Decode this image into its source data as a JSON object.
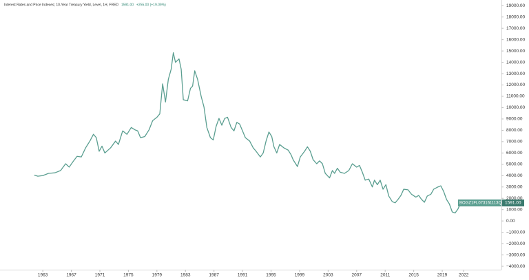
{
  "chart_data": {
    "type": "line",
    "title": "Interest Rates and Price Indexes; 10-Year Treasury Yield, Level, 1H, FRED",
    "change": "+255.00 (+19.09%)",
    "last_value": {
      "value": 1591,
      "label": "1591.00"
    },
    "xlim": [
      1957.0,
      2027.3
    ],
    "xticks": [
      1963,
      1967,
      1971,
      1975,
      1979,
      1983,
      1987,
      1991,
      1995,
      1999,
      2003,
      2007,
      2011,
      2015,
      2019,
      2022
    ],
    "ylim": [
      -4300,
      19500
    ],
    "yticks": [
      {
        "value": 19000,
        "label": "19000.00"
      },
      {
        "value": 18000,
        "label": "18000.00"
      },
      {
        "value": 17000,
        "label": "17000.00"
      },
      {
        "value": 16000,
        "label": "16000.00"
      },
      {
        "value": 15000,
        "label": "15000.00"
      },
      {
        "value": 14000,
        "label": "14000.00"
      },
      {
        "value": 13000,
        "label": "13000.00"
      },
      {
        "value": 12000,
        "label": "12000.00"
      },
      {
        "value": 11000,
        "label": "11000.00"
      },
      {
        "value": 10000,
        "label": "10000.00"
      },
      {
        "value": 9000,
        "label": "9000.00"
      },
      {
        "value": 8000,
        "label": "8000.00"
      },
      {
        "value": 7000,
        "label": "7000.00"
      },
      {
        "value": 6000,
        "label": "6000.00"
      },
      {
        "value": 5000,
        "label": "5000.00"
      },
      {
        "value": 4000,
        "label": "4000.00"
      },
      {
        "value": 3000,
        "label": "3000.00"
      },
      {
        "value": 2000,
        "label": "2000.00"
      },
      {
        "value": 1000,
        "label": "1000.00"
      },
      {
        "value": 0,
        "label": "0.00"
      },
      {
        "value": -1000,
        "label": "−1000.00"
      },
      {
        "value": -2000,
        "label": "−2000.00"
      },
      {
        "value": -3000,
        "label": "−3000.00"
      },
      {
        "value": -4000,
        "label": "−4000.00"
      }
    ],
    "series": [
      {
        "name": "BOGZ1FL073161113Q",
        "color": "#5a9e90",
        "x": [
          1961.8,
          1962.3,
          1963.0,
          1963.8,
          1964.7,
          1965.5,
          1966.2,
          1966.7,
          1967.2,
          1967.8,
          1968.4,
          1969.0,
          1969.6,
          1970.1,
          1970.5,
          1970.9,
          1971.3,
          1971.7,
          1972.5,
          1973.2,
          1973.6,
          1974.2,
          1974.8,
          1975.4,
          1975.9,
          1976.3,
          1976.7,
          1977.3,
          1977.9,
          1978.4,
          1979.0,
          1979.4,
          1979.8,
          1980.2,
          1980.6,
          1981.0,
          1981.3,
          1981.6,
          1982.1,
          1982.4,
          1982.7,
          1983.3,
          1983.7,
          1984.0,
          1984.3,
          1984.7,
          1985.2,
          1985.6,
          1986.0,
          1986.5,
          1986.9,
          1987.3,
          1987.7,
          1988.1,
          1988.5,
          1988.9,
          1989.4,
          1989.8,
          1990.2,
          1990.6,
          1991.0,
          1991.4,
          1992.0,
          1992.5,
          1992.9,
          1993.5,
          1993.9,
          1994.3,
          1994.7,
          1995.1,
          1995.4,
          1995.8,
          1996.2,
          1996.8,
          1997.4,
          1997.8,
          1998.1,
          1998.7,
          1999.1,
          1999.7,
          2000.1,
          2000.5,
          2000.9,
          2001.4,
          2001.8,
          2002.2,
          2002.6,
          2003.2,
          2003.6,
          2003.9,
          2004.3,
          2004.7,
          2005.3,
          2005.9,
          2006.4,
          2007.0,
          2007.4,
          2007.8,
          2008.2,
          2008.7,
          2009.2,
          2009.5,
          2009.9,
          2010.3,
          2010.7,
          2011.1,
          2011.5,
          2012.0,
          2012.4,
          2012.8,
          2013.2,
          2013.6,
          2014.2,
          2014.7,
          2015.3,
          2015.7,
          2016.1,
          2016.5,
          2016.9,
          2017.4,
          2017.8,
          2018.4,
          2018.8,
          2019.2,
          2019.6,
          2020.0,
          2020.4,
          2020.8,
          2021.2,
          2021.6,
          2021.8
        ],
        "values": [
          4050,
          3950,
          4000,
          4200,
          4250,
          4450,
          5050,
          4750,
          5200,
          5700,
          5650,
          6450,
          7050,
          7650,
          7350,
          6150,
          6600,
          6000,
          6450,
          7050,
          6750,
          7950,
          7650,
          8250,
          8050,
          7950,
          7350,
          7450,
          8050,
          8850,
          9150,
          9450,
          12100,
          10500,
          12500,
          13400,
          14850,
          14000,
          14300,
          13400,
          10700,
          10600,
          11700,
          11900,
          13250,
          12500,
          11000,
          10050,
          8250,
          7350,
          7150,
          8350,
          9050,
          8450,
          9050,
          9150,
          8250,
          7950,
          8700,
          8550,
          7950,
          7350,
          7050,
          6450,
          6150,
          5650,
          6000,
          7050,
          7850,
          7450,
          6550,
          6000,
          6750,
          6450,
          6250,
          5850,
          5400,
          4800,
          5650,
          6150,
          6550,
          6150,
          5400,
          5050,
          5300,
          5050,
          4200,
          3800,
          4450,
          4200,
          4650,
          4300,
          4200,
          4450,
          5050,
          4750,
          4900,
          4300,
          3600,
          3700,
          3000,
          3600,
          3200,
          3600,
          2800,
          3200,
          2200,
          1700,
          1600,
          1900,
          2250,
          2800,
          2750,
          2350,
          2100,
          2250,
          1900,
          1650,
          2200,
          2350,
          2800,
          3000,
          3100,
          2600,
          1900,
          1500,
          800,
          700,
          1050,
          1600,
          1591
        ]
      }
    ]
  }
}
